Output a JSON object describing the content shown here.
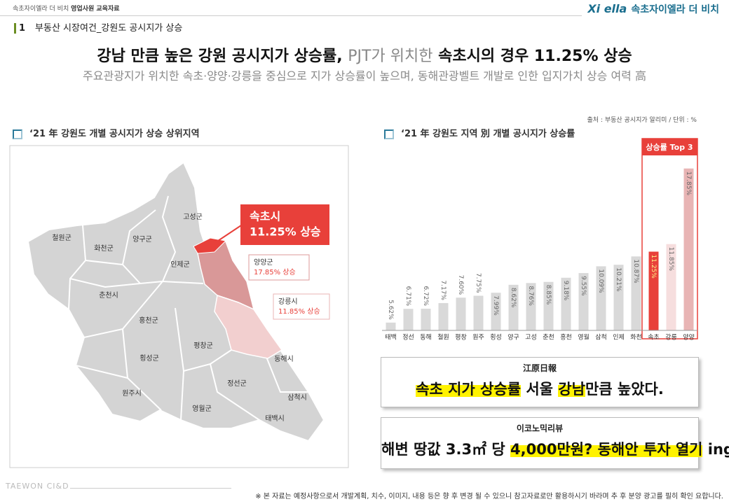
{
  "header": {
    "doc_label": "속초자이엘라 더 비치",
    "doc_label_bold": "영업사원 교육자료",
    "brand_logo": "Xi ella",
    "brand_name": "속초자이엘라 더 비치"
  },
  "section": {
    "number": "1",
    "title": "부동산 시장여건_강원도 공시지가 상승"
  },
  "headline": {
    "part1": "강남 만큼 높은 강원 공시지가 상승률,",
    "part2": "PJT가 위치한",
    "part3": "속초시의 경우 11.25% 상승"
  },
  "subheadline": "주요관광지가 위치한 속초·양양·강릉을 중심으로 지가 상승률이 높으며, 동해관광벨트 개발로 인한 입지가치 상승 여력 高",
  "map": {
    "title": "‘21 年 강원도 개별 공시지가 상승 상위지역",
    "regions": [
      "고성군",
      "철원군",
      "화천군",
      "양구군",
      "인제군",
      "춘천시",
      "홍천군",
      "횡성군",
      "평창군",
      "동해시",
      "정선군",
      "원주시",
      "영월군",
      "삼척시",
      "태백시"
    ],
    "callouts": [
      {
        "name": "속초시",
        "text": "11.25% 상승"
      },
      {
        "name": "양양군",
        "text": "17.85% 상승"
      },
      {
        "name": "강릉시",
        "text": "11.85% 상승"
      }
    ]
  },
  "chart_data": {
    "type": "bar",
    "title": "‘21 年 강원도 지역 別 개별 공시지가 상승률",
    "source": "출처 : 부동산 공시지가 알리미 / 단위 : %",
    "highlight_label": "상승률 Top 3",
    "categories": [
      "태백",
      "정선",
      "동해",
      "철원",
      "평창",
      "원주",
      "횡성",
      "양구",
      "고성",
      "춘천",
      "홍천",
      "영월",
      "삼척",
      "인제",
      "화천",
      "속초",
      "강릉",
      "양양"
    ],
    "values": [
      5.62,
      6.71,
      6.72,
      7.17,
      7.6,
      7.75,
      7.99,
      8.62,
      8.76,
      8.85,
      9.18,
      9.55,
      10.09,
      10.21,
      10.87,
      11.25,
      11.85,
      17.85
    ],
    "value_labels": [
      "5.62%",
      "6.71%",
      "6.72%",
      "7.17%",
      "7.60%",
      "7.75%",
      "7.99%",
      "8.62%",
      "8.76%",
      "8.85%",
      "9.18%",
      "9.55%",
      "10.09%",
      "10.21%",
      "10.87%",
      "11.25%",
      "11.85%",
      "17.85%"
    ],
    "colors": [
      "#d9d9d9",
      "#d9d9d9",
      "#d9d9d9",
      "#d9d9d9",
      "#d9d9d9",
      "#d9d9d9",
      "#d9d9d9",
      "#d9d9d9",
      "#d9d9d9",
      "#d9d9d9",
      "#d9d9d9",
      "#d9d9d9",
      "#d9d9d9",
      "#d9d9d9",
      "#d9d9d9",
      "#e8403a",
      "#f6dede",
      "#e8b4b4"
    ],
    "ylim": [
      5,
      18
    ]
  },
  "news": [
    {
      "source": "江原日報",
      "headline": [
        {
          "text": "속초 지가 상승률",
          "highlight": true
        },
        {
          "text": " 서울 ",
          "highlight": false
        },
        {
          "text": "강남",
          "highlight": true
        },
        {
          "text": "만큼 높았다.",
          "highlight": false
        }
      ]
    },
    {
      "source": "이코노믹리뷰",
      "headline": [
        {
          "text": "해변 땅값 3.3㎡ 당 ",
          "highlight": false
        },
        {
          "text": "4,000만원? 동해안 투자 열기",
          "highlight": true
        },
        {
          "text": " ing",
          "highlight": false
        }
      ]
    }
  ],
  "footer": {
    "company": "TAEWON CI&D",
    "note": "※ 본 자료는 예정사항으로서 개발계획, 치수, 이미지, 내용 등은 향 후 변경 될 수 있으니 참고자료로만 활용하시기 바라며 추 후 분양 광고를 필히 확인 요합니다."
  }
}
